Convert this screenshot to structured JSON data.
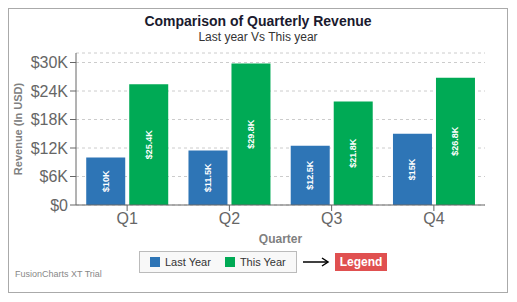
{
  "chart_data": {
    "type": "bar",
    "title": "Comparison of Quarterly Revenue",
    "subtitle": "Last year Vs This year",
    "xlabel": "Quarter",
    "ylabel": "Revenue (In USD)",
    "categories": [
      "Q1",
      "Q2",
      "Q3",
      "Q4"
    ],
    "series": [
      {
        "name": "Last Year",
        "color": "#2e75b6",
        "values": [
          10000,
          11500,
          12500,
          15000
        ],
        "value_labels": [
          "$10K",
          "$11.5K",
          "$12.5K",
          "$15K"
        ]
      },
      {
        "name": "This Year",
        "color": "#00aa55",
        "values": [
          25400,
          29800,
          21800,
          26800
        ],
        "value_labels": [
          "$25.4K",
          "$29.8K",
          "$21.8K",
          "$26.8K"
        ]
      }
    ],
    "ylim": [
      0,
      32000
    ],
    "yticks": [
      {
        "value": 0,
        "label": "$0"
      },
      {
        "value": 6000,
        "label": "$6K"
      },
      {
        "value": 12000,
        "label": "$12K"
      },
      {
        "value": 18000,
        "label": "$18K"
      },
      {
        "value": 24000,
        "label": "$24K"
      },
      {
        "value": 30000,
        "label": "$30K"
      }
    ],
    "grid": true,
    "data_labels": true,
    "legend": "bottom",
    "annotations": [
      "FusionCharts XT Trial",
      "Legend"
    ]
  }
}
